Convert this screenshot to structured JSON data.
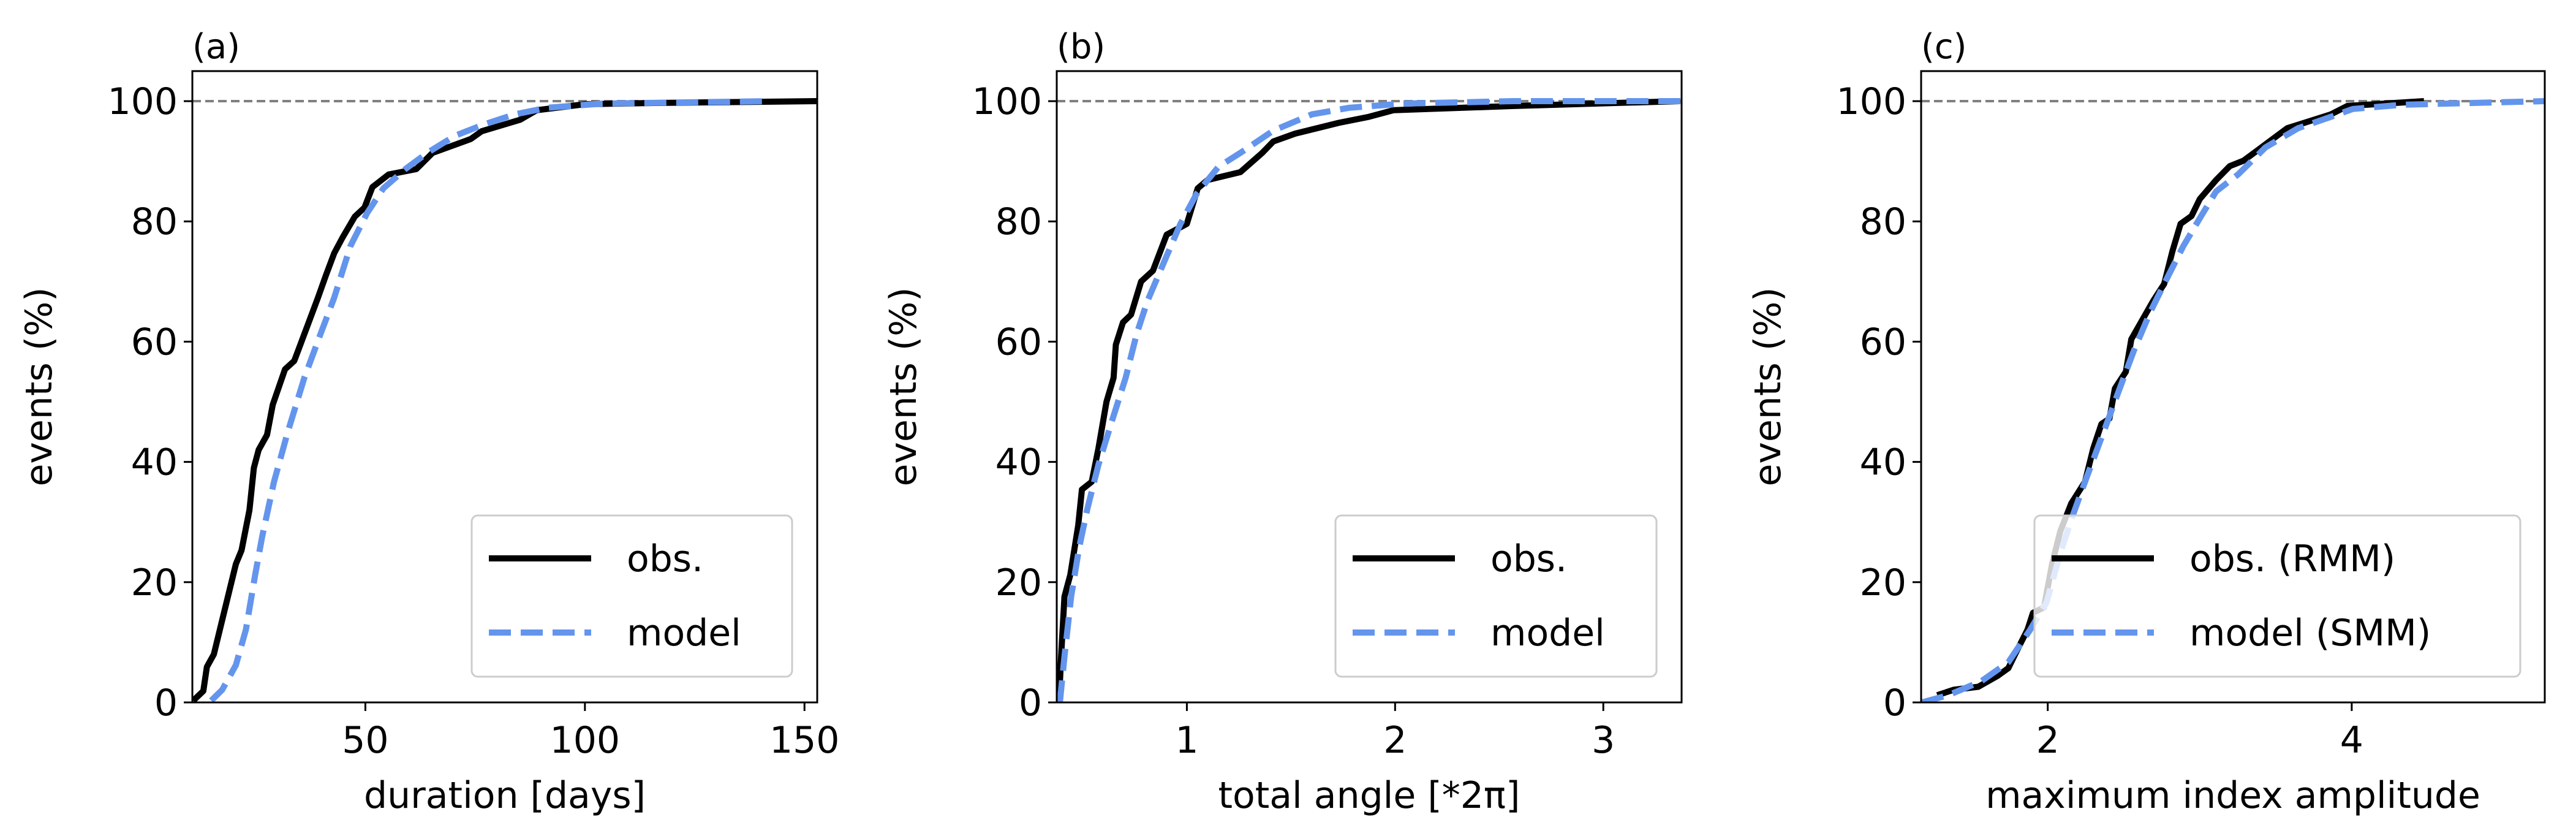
{
  "colors": {
    "obs": "#000000",
    "model": "#6495ED",
    "reference": "#808080"
  },
  "chart_data": [
    {
      "type": "line",
      "panel_label": "(a)",
      "xlabel": "duration [days]",
      "ylabel": "events (%)",
      "xlim": [
        10.6,
        152.9
      ],
      "ylim": [
        0,
        105
      ],
      "xticks": [
        50,
        100,
        150
      ],
      "yticks": [
        0,
        20,
        40,
        60,
        80,
        100
      ],
      "reference_line": 100,
      "legend_placement": "lower-right",
      "series": [
        {
          "name": "obs.",
          "style": "solid",
          "x": [
            10.8,
            13.1,
            13.9,
            15.5,
            17.8,
            20.5,
            21.8,
            23.6,
            24.6,
            25.7,
            27.6,
            28.9,
            31.7,
            33.8,
            35.2,
            39.2,
            41,
            42.9,
            44.8,
            47.6,
            49.8,
            51.6,
            55.3,
            61.6,
            65.3,
            74,
            76.5,
            85.2,
            89,
            100,
            116,
            153
          ],
          "y": [
            0.3,
            1.9,
            5.9,
            8,
            14.9,
            23,
            25.3,
            32,
            39,
            42,
            44.5,
            49.5,
            55.4,
            56.8,
            59.5,
            67.3,
            71,
            74.7,
            77.3,
            80.8,
            82.3,
            85.7,
            87.8,
            88.7,
            91.4,
            93.7,
            95,
            96.9,
            98.5,
            99.5,
            99.7,
            100
          ]
        },
        {
          "name": "model",
          "style": "dashed",
          "x": [
            14.9,
            17.4,
            20.5,
            22.8,
            24.9,
            26.5,
            29.2,
            32.3,
            36.1,
            39.8,
            42.9,
            46.6,
            50.4,
            54.1,
            59.1,
            64.1,
            70.3,
            76.5,
            84,
            91.4,
            103.9,
            142.4
          ],
          "y": [
            0.3,
            2.1,
            6.2,
            12.1,
            21.2,
            27.6,
            36.7,
            44.9,
            54,
            61.3,
            67.3,
            75.9,
            81.4,
            85.5,
            88.7,
            91.4,
            94.2,
            96,
            97.8,
            98.9,
            99.6,
            100
          ]
        }
      ]
    },
    {
      "type": "line",
      "panel_label": "(b)",
      "xlabel": "total angle [*2π]",
      "ylabel": "events (%)",
      "xlim": [
        0.375,
        3.376
      ],
      "ylim": [
        0,
        105
      ],
      "xticks": [
        1,
        2,
        3
      ],
      "yticks": [
        0,
        20,
        40,
        60,
        80,
        100
      ],
      "reference_line": 100,
      "legend_placement": "lower-right",
      "series": [
        {
          "name": "obs.",
          "style": "solid",
          "x": [
            0.386,
            0.396,
            0.412,
            0.44,
            0.478,
            0.496,
            0.543,
            0.575,
            0.614,
            0.648,
            0.659,
            0.693,
            0.732,
            0.78,
            0.837,
            0.903,
            1,
            1.052,
            1.1,
            1.257,
            1.362,
            1.415,
            1.52,
            1.73,
            1.874,
            1.992,
            2.57,
            3.37
          ],
          "y": [
            0,
            7.6,
            17.6,
            21.2,
            29.4,
            35.4,
            36.7,
            42.2,
            50,
            54,
            59.5,
            63.2,
            64.5,
            70,
            71.8,
            77.8,
            79.6,
            85.5,
            86.9,
            88.2,
            91.4,
            93.3,
            94.6,
            96.4,
            97.4,
            98.5,
            99.2,
            100
          ]
        },
        {
          "name": "model",
          "style": "dashed",
          "x": [
            0.39,
            0.412,
            0.444,
            0.483,
            0.522,
            0.575,
            0.64,
            0.706,
            0.759,
            0.811,
            0.89,
            0.969,
            1.047,
            1.152,
            1.257,
            1.415,
            1.6,
            1.78,
            2.04,
            2.57,
            3.37
          ],
          "y": [
            0,
            7.6,
            17.6,
            25.8,
            32.2,
            39.5,
            46.8,
            54,
            61.3,
            66.8,
            73.2,
            79.6,
            84.6,
            89.1,
            91.4,
            95.1,
            97.8,
            98.9,
            99.6,
            100,
            100
          ]
        }
      ]
    },
    {
      "type": "line",
      "panel_label": "(c)",
      "xlabel": "maximum index amplitude",
      "ylabel": "events (%)",
      "xlim": [
        1.167,
        5.27
      ],
      "ylim": [
        0,
        105
      ],
      "xticks": [
        2,
        4
      ],
      "yticks": [
        0,
        20,
        40,
        60,
        80,
        100
      ],
      "reference_line": 100,
      "legend_placement": "lower-right",
      "series": [
        {
          "name": "obs. (RMM)",
          "style": "solid",
          "x": [
            1.273,
            1.381,
            1.543,
            1.669,
            1.741,
            1.795,
            1.867,
            1.903,
            1.975,
            2.029,
            2.083,
            2.155,
            2.245,
            2.299,
            2.353,
            2.406,
            2.442,
            2.514,
            2.55,
            2.622,
            2.694,
            2.766,
            2.82,
            2.874,
            2.946,
            3,
            3.108,
            3.198,
            3.288,
            3.432,
            3.576,
            3.863,
            3.971,
            4.475
          ],
          "y": [
            1.2,
            2.1,
            2.6,
            4.4,
            5.7,
            8.5,
            12.1,
            14.9,
            15.8,
            23.1,
            28.5,
            33.1,
            36.7,
            42.2,
            46.3,
            47.2,
            52.2,
            55,
            60.4,
            63.6,
            66.8,
            69.6,
            75,
            79.6,
            80.9,
            83.7,
            86.9,
            89.2,
            90.1,
            92.8,
            95.5,
            97.8,
            99.2,
            100
          ]
        },
        {
          "name": "model (SMM)",
          "style": "dashed",
          "x": [
            1.173,
            1.345,
            1.561,
            1.741,
            1.885,
            1.993,
            2.083,
            2.155,
            2.245,
            2.353,
            2.46,
            2.568,
            2.676,
            2.784,
            2.892,
            3,
            3.108,
            3.252,
            3.432,
            3.647,
            3.863,
            4.007,
            4.331,
            5.27
          ],
          "y": [
            0,
            1.2,
            3.5,
            6.7,
            12.1,
            16.7,
            24.9,
            30.4,
            36.7,
            44,
            51.3,
            58.6,
            65,
            70.5,
            75.9,
            80.5,
            85,
            87.8,
            92.3,
            95.5,
            97.4,
            98.7,
            99.4,
            100
          ]
        }
      ]
    }
  ]
}
